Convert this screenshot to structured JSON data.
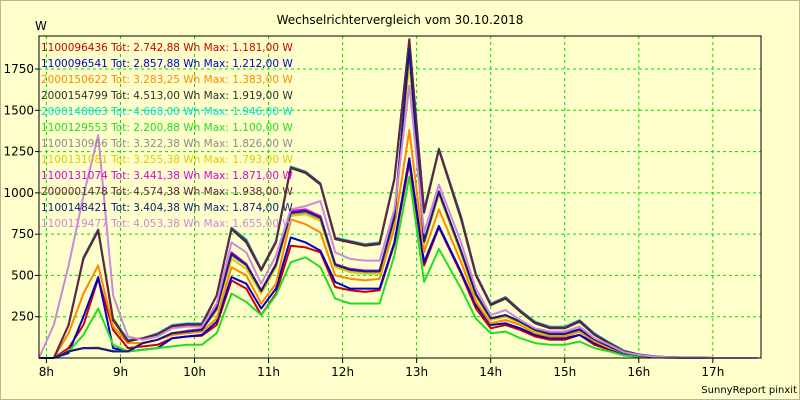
{
  "chart_data": {
    "type": "line",
    "title": "Wechselrichtervergleich vom 30.10.2018",
    "ylabel": "W",
    "xlabel": "",
    "footer": "SunnyReport pinxit",
    "ylim": [
      0,
      1950
    ],
    "xlim": [
      7.9,
      17.65
    ],
    "y_ticks": [
      250,
      500,
      750,
      1000,
      1250,
      1500,
      1750
    ],
    "x_ticks": [
      8,
      9,
      10,
      11,
      12,
      13,
      14,
      15,
      16,
      17
    ],
    "x_tick_labels": [
      "8h",
      "9h",
      "10h",
      "11h",
      "12h",
      "13h",
      "14h",
      "15h",
      "16h",
      "17h"
    ],
    "grid": true,
    "legend_position": "top-left",
    "background_color": "#ffffcc",
    "grid_color": "#00dd00",
    "x": [
      7.9,
      8.1,
      8.3,
      8.5,
      8.7,
      8.9,
      9.1,
      9.3,
      9.5,
      9.7,
      9.9,
      10.1,
      10.3,
      10.5,
      10.7,
      10.9,
      11.1,
      11.3,
      11.5,
      11.7,
      11.9,
      12.1,
      12.3,
      12.5,
      12.7,
      12.9,
      13.1,
      13.3,
      13.6,
      13.8,
      14.0,
      14.2,
      14.4,
      14.6,
      14.8,
      15.0,
      15.2,
      15.4,
      15.6,
      15.8,
      16.0,
      16.2,
      16.4,
      16.6,
      16.8,
      17.0,
      17.2,
      17.4,
      17.6
    ],
    "series": [
      {
        "legend": "1100096436 Tot: 2.742,88 Wh Max: 1.181,00 W",
        "color": "#cc0000",
        "values": [
          0,
          0,
          60,
          200,
          480,
          170,
          60,
          70,
          80,
          120,
          130,
          135,
          200,
          470,
          420,
          260,
          390,
          680,
          670,
          640,
          430,
          410,
          400,
          410,
          690,
          1180,
          560,
          790,
          510,
          300,
          180,
          200,
          170,
          130,
          110,
          110,
          140,
          80,
          50,
          20,
          10,
          5,
          3,
          2,
          1,
          0,
          0,
          0,
          0
        ]
      },
      {
        "legend": "1100096541 Tot: 2.857,88 Wh Max: 1.212,00 W",
        "color": "#0000cc",
        "values": [
          0,
          0,
          30,
          250,
          490,
          60,
          40,
          50,
          60,
          120,
          130,
          140,
          220,
          490,
          450,
          300,
          420,
          730,
          700,
          650,
          460,
          420,
          420,
          420,
          700,
          1210,
          580,
          800,
          520,
          320,
          200,
          210,
          180,
          140,
          120,
          120,
          140,
          90,
          55,
          25,
          12,
          5,
          3,
          2,
          1,
          0,
          0,
          0,
          0
        ]
      },
      {
        "legend": "2000150622 Tot: 3.283,25 Wh Max: 1.383,00 W",
        "color": "#ff8800",
        "values": [
          0,
          0,
          150,
          390,
          560,
          190,
          90,
          90,
          110,
          140,
          150,
          160,
          240,
          550,
          500,
          330,
          450,
          840,
          810,
          760,
          500,
          480,
          470,
          480,
          790,
          1380,
          640,
          900,
          580,
          340,
          210,
          230,
          200,
          150,
          130,
          130,
          160,
          100,
          60,
          30,
          15,
          8,
          5,
          3,
          2,
          0,
          0,
          0,
          0
        ]
      },
      {
        "legend": "2000154799 Tot: 4.513,00 Wh Max: 1.919,00 W",
        "color": "#303030",
        "values": [
          0,
          0,
          200,
          600,
          770,
          230,
          100,
          120,
          140,
          190,
          200,
          200,
          380,
          780,
          700,
          530,
          700,
          1150,
          1120,
          1050,
          720,
          700,
          680,
          690,
          1080,
          1910,
          880,
          1260,
          840,
          500,
          320,
          360,
          280,
          210,
          180,
          180,
          220,
          140,
          90,
          40,
          20,
          10,
          5,
          3,
          2,
          0,
          0,
          0,
          0
        ]
      },
      {
        "legend": "2000148863 Tot: 4.668,00 Wh Max: 1.946,00 W",
        "color": "#00dddd",
        "values": [
          0,
          0,
          200,
          610,
          780,
          240,
          110,
          120,
          150,
          200,
          210,
          210,
          380,
          790,
          720,
          540,
          710,
          1160,
          1130,
          1060,
          730,
          710,
          690,
          700,
          1090,
          1930,
          900,
          1270,
          860,
          510,
          330,
          370,
          290,
          220,
          190,
          190,
          230,
          150,
          95,
          45,
          22,
          10,
          5,
          3,
          2,
          0,
          0,
          0,
          0
        ]
      },
      {
        "legend": "1100129553 Tot: 2.200,88 Wh Max: 1.100,00 W",
        "color": "#22dd22",
        "values": [
          0,
          0,
          40,
          140,
          300,
          80,
          40,
          50,
          60,
          70,
          80,
          80,
          150,
          390,
          340,
          260,
          380,
          580,
          610,
          550,
          360,
          330,
          330,
          330,
          620,
          1100,
          460,
          660,
          420,
          240,
          150,
          160,
          120,
          90,
          80,
          80,
          100,
          60,
          40,
          15,
          8,
          4,
          2,
          1,
          0,
          0,
          0,
          0,
          0
        ]
      },
      {
        "legend": "1100130966 Tot: 3.322,38 Wh Max: 1.826,00 W",
        "color": "#8c8c8c",
        "values": [
          0,
          0,
          40,
          60,
          60,
          40,
          40,
          90,
          110,
          150,
          160,
          170,
          300,
          620,
          560,
          400,
          560,
          870,
          880,
          840,
          560,
          530,
          520,
          520,
          840,
          1820,
          700,
          1000,
          640,
          380,
          240,
          260,
          220,
          170,
          140,
          140,
          170,
          110,
          70,
          30,
          15,
          8,
          4,
          2,
          1,
          0,
          0,
          0,
          0
        ]
      },
      {
        "legend": "1100131081 Tot: 3.255,38 Wh Max: 1.793,00 W",
        "color": "#ddcc00",
        "values": [
          0,
          0,
          45,
          60,
          65,
          40,
          40,
          90,
          110,
          150,
          160,
          170,
          290,
          600,
          540,
          390,
          550,
          860,
          870,
          830,
          550,
          520,
          510,
          510,
          830,
          1790,
          690,
          990,
          630,
          370,
          230,
          250,
          210,
          160,
          140,
          140,
          170,
          110,
          70,
          30,
          15,
          8,
          4,
          2,
          1,
          0,
          0,
          0,
          0
        ]
      },
      {
        "legend": "1100131074 Tot: 3.441,38 Wh Max: 1.871,00 W",
        "color": "#dd00dd",
        "values": [
          0,
          0,
          40,
          60,
          60,
          40,
          40,
          90,
          110,
          150,
          165,
          175,
          310,
          640,
          570,
          410,
          570,
          890,
          900,
          860,
          570,
          540,
          530,
          530,
          860,
          1870,
          710,
          1010,
          650,
          390,
          240,
          260,
          220,
          170,
          150,
          150,
          175,
          115,
          72,
          32,
          16,
          8,
          4,
          2,
          1,
          0,
          0,
          0,
          0
        ]
      },
      {
        "legend": "2000001478 Tot: 4.574,38 Wh Max: 1.938,00 W",
        "color": "#6a2040",
        "values": [
          0,
          0,
          200,
          605,
          775,
          235,
          105,
          120,
          145,
          195,
          205,
          205,
          380,
          785,
          710,
          535,
          705,
          1155,
          1125,
          1055,
          725,
          705,
          685,
          695,
          1085,
          1930,
          890,
          1265,
          850,
          505,
          325,
          365,
          285,
          215,
          185,
          185,
          225,
          145,
          92,
          42,
          21,
          10,
          5,
          3,
          2,
          0,
          0,
          0,
          0
        ]
      },
      {
        "legend": "1100148421 Tot: 3.404,38 Wh Max: 1.874,00 W",
        "color": "#102080",
        "values": [
          0,
          0,
          40,
          60,
          60,
          40,
          40,
          90,
          110,
          150,
          160,
          170,
          300,
          630,
          565,
          405,
          565,
          880,
          890,
          850,
          565,
          535,
          525,
          525,
          850,
          1870,
          705,
          1005,
          645,
          385,
          240,
          260,
          220,
          170,
          145,
          145,
          172,
          112,
          71,
          31,
          15,
          8,
          4,
          2,
          1,
          0,
          0,
          0,
          0
        ]
      },
      {
        "legend": "1100119477 Tot: 4.053,38 Wh Max: 1.655,00 W",
        "color": "#cc88dd",
        "values": [
          0,
          200,
          560,
          980,
          1350,
          380,
          130,
          110,
          130,
          180,
          190,
          190,
          330,
          700,
          640,
          450,
          620,
          900,
          920,
          950,
          640,
          600,
          590,
          590,
          900,
          1650,
          760,
          1050,
          700,
          420,
          260,
          290,
          230,
          180,
          160,
          160,
          190,
          120,
          80,
          35,
          18,
          9,
          5,
          2,
          1,
          0,
          0,
          0,
          0
        ]
      }
    ]
  }
}
